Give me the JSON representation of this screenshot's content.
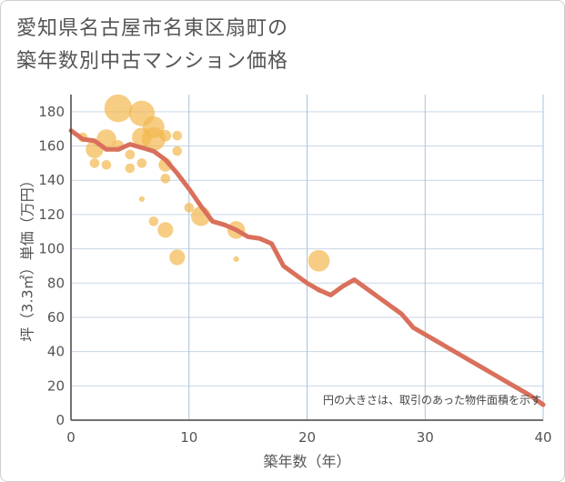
{
  "title": {
    "line1": "愛知県名古屋市名東区扇町の",
    "line2": "築年数別中古マンション価格"
  },
  "chart_data": {
    "type": "scatter",
    "xlabel": "築年数（年）",
    "ylabel": "坪（3.3㎡）単価（万円）",
    "xlim": [
      0,
      40
    ],
    "ylim": [
      0,
      190
    ],
    "x_ticks": [
      0,
      10,
      20,
      30,
      40
    ],
    "y_ticks": [
      0,
      20,
      40,
      60,
      80,
      100,
      120,
      140,
      160,
      180
    ],
    "note": "円の大きさは、取引のあった物件面積を示す",
    "colors": {
      "bubble": "#f2b84f",
      "line": "#d9705c",
      "grid": "#c9d6e6",
      "vertical_grid": "#a9c2dc"
    },
    "bubbles": [
      {
        "x": 1,
        "y": 165,
        "size": 3
      },
      {
        "x": 2,
        "y": 158,
        "size": 7
      },
      {
        "x": 2,
        "y": 150,
        "size": 3
      },
      {
        "x": 3,
        "y": 164,
        "size": 8
      },
      {
        "x": 3,
        "y": 149,
        "size": 3
      },
      {
        "x": 4,
        "y": 182,
        "size": 12
      },
      {
        "x": 4,
        "y": 160,
        "size": 4
      },
      {
        "x": 5,
        "y": 155,
        "size": 3
      },
      {
        "x": 5,
        "y": 147,
        "size": 3
      },
      {
        "x": 6,
        "y": 179,
        "size": 11
      },
      {
        "x": 6,
        "y": 165,
        "size": 8
      },
      {
        "x": 6,
        "y": 150,
        "size": 3
      },
      {
        "x": 6,
        "y": 129,
        "size": 1
      },
      {
        "x": 7,
        "y": 171,
        "size": 9
      },
      {
        "x": 7,
        "y": 164,
        "size": 10
      },
      {
        "x": 7,
        "y": 116,
        "size": 3
      },
      {
        "x": 8,
        "y": 166,
        "size": 4
      },
      {
        "x": 8,
        "y": 149,
        "size": 5
      },
      {
        "x": 8,
        "y": 141,
        "size": 3
      },
      {
        "x": 8,
        "y": 111,
        "size": 6
      },
      {
        "x": 9,
        "y": 166,
        "size": 3
      },
      {
        "x": 9,
        "y": 157,
        "size": 3
      },
      {
        "x": 9,
        "y": 95,
        "size": 6
      },
      {
        "x": 10,
        "y": 124,
        "size": 3
      },
      {
        "x": 11,
        "y": 119,
        "size": 8
      },
      {
        "x": 14,
        "y": 111,
        "size": 7
      },
      {
        "x": 14,
        "y": 94,
        "size": 1
      },
      {
        "x": 21,
        "y": 93,
        "size": 9
      },
      {
        "x": 21,
        "y": 76,
        "size": 1
      }
    ],
    "series": [
      {
        "x": [
          0,
          1,
          2,
          3,
          4,
          5,
          6,
          7,
          8,
          9,
          10,
          11,
          12,
          13,
          14,
          15,
          16,
          17,
          18,
          19,
          20,
          21,
          22,
          23,
          24,
          25,
          26,
          27,
          28,
          29,
          30,
          31,
          32,
          33,
          34,
          35,
          36,
          37,
          38,
          39,
          40
        ],
        "values": [
          169,
          164,
          163,
          158,
          158,
          161,
          159,
          157,
          152,
          144,
          135,
          125,
          116,
          114,
          111,
          107,
          106,
          103,
          90,
          85,
          80,
          76,
          73,
          78,
          82,
          77,
          72,
          67,
          62,
          54,
          50,
          46,
          42,
          38,
          34,
          30,
          26,
          22,
          18,
          14,
          9
        ]
      }
    ]
  }
}
